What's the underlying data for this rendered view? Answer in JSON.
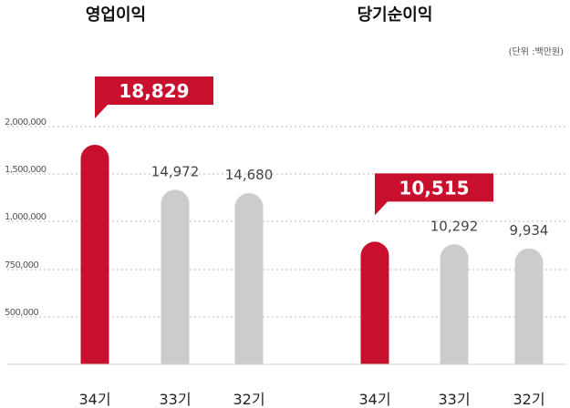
{
  "colors": {
    "highlight": "#c8102e",
    "bar": "#cccccc"
  },
  "unit_note": "(단위 :백만원)",
  "chart_data": [
    {
      "type": "bar",
      "title": "영업이익",
      "categories": [
        "34기",
        "33기",
        "32기"
      ],
      "values": [
        18829,
        14972,
        14680
      ],
      "value_labels": [
        "18,829",
        "14,972",
        "14,680"
      ],
      "highlight_index": 0,
      "y_ticks": [
        "2,000,000",
        "1,500,000",
        "1,000,000",
        "750,000",
        "500,000"
      ],
      "grid": true,
      "legend": "none"
    },
    {
      "type": "bar",
      "title": "당기순이익",
      "categories": [
        "34기",
        "33기",
        "32기"
      ],
      "values": [
        10515,
        10292,
        9934
      ],
      "value_labels": [
        "10,515",
        "10,292",
        "9,934"
      ],
      "highlight_index": 0,
      "grid": true,
      "legend": "none"
    }
  ]
}
